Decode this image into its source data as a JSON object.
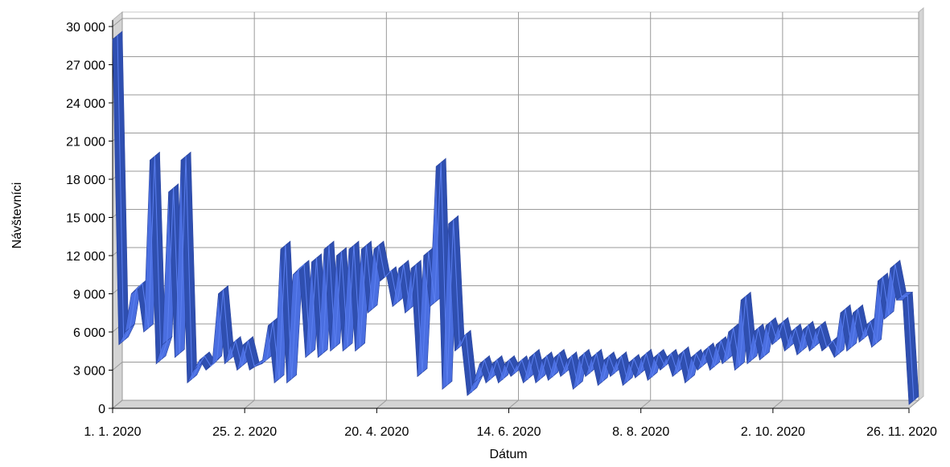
{
  "chart_data": {
    "type": "line",
    "title": "",
    "xlabel": "Dátum",
    "ylabel": "Návštevníci",
    "ylim": [
      0,
      30000
    ],
    "yticks": [
      "0",
      "3 000",
      "6 000",
      "9 000",
      "12 000",
      "15 000",
      "18 000",
      "21 000",
      "24 000",
      "27 000",
      "30 000"
    ],
    "xticks": [
      "1. 1. 2020",
      "25. 2. 2020",
      "20. 4. 2020",
      "14. 6. 2020",
      "8. 8. 2020",
      "2. 10. 2020",
      "26. 11. 2020"
    ],
    "grid": true,
    "series_color": "#3a5fcd",
    "series": [
      {
        "values": [
          29000,
          5000,
          6000,
          9000,
          9500,
          6000,
          19500,
          3500,
          5000,
          17000,
          4000,
          19500,
          2000,
          3000,
          3800,
          3000,
          3500,
          9000,
          3500,
          5000,
          3000,
          5000,
          3000,
          3300,
          3500,
          6500,
          2000,
          12500,
          2000,
          10500,
          11000,
          4000,
          11500,
          4000,
          12500,
          4500,
          12000,
          4500,
          12500,
          4500,
          12500,
          7500,
          12500,
          10000,
          10500,
          8000,
          11000,
          7500,
          11000,
          2500,
          12000,
          8000,
          19000,
          1500,
          14500,
          4500,
          5500,
          1000,
          2000,
          3500,
          2000,
          3500,
          2000,
          3500,
          2500,
          3500,
          2000,
          4000,
          2000,
          3800,
          2200,
          4000,
          2500,
          3800,
          1500,
          4000,
          2500,
          4000,
          1800,
          3800,
          2500,
          3800,
          1800,
          3600,
          2400,
          4000,
          2200,
          4000,
          3000,
          4000,
          2500,
          4200,
          2000,
          4000,
          3000,
          4500,
          3000,
          5000,
          3500,
          6000,
          3000,
          8500,
          3500,
          6000,
          3800,
          6500,
          5000,
          6500,
          4500,
          6000,
          4200,
          6200,
          4500,
          6200,
          4500,
          5000,
          4000,
          7500,
          4500,
          7500,
          5200,
          6500,
          4800,
          10000,
          7000,
          11000,
          8500,
          8500,
          300
        ]
      }
    ]
  }
}
